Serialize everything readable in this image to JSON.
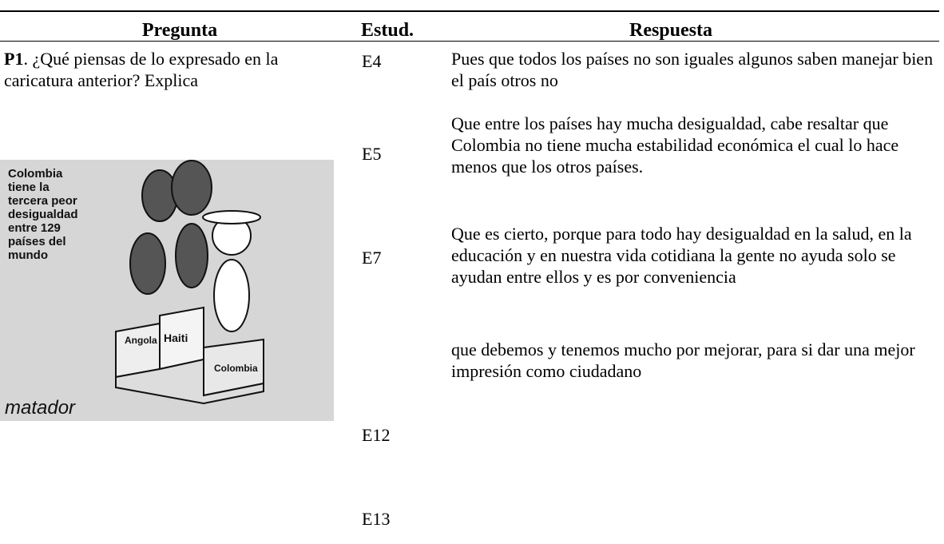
{
  "header": {
    "columns": [
      "Pregunta",
      "Estud.",
      "Respuesta"
    ]
  },
  "question": {
    "label": "P1",
    "text": ". ¿Qué piensas de lo expresado en la  caricatura anterior? Explica"
  },
  "cartoon": {
    "caption": [
      "Colombia",
      "tiene la",
      "tercera peor",
      "desigualdad",
      "entre 129",
      "países del",
      "mundo"
    ],
    "podium": [
      "Angola",
      "Haiti",
      "Colombia"
    ],
    "signature": "matador"
  },
  "rows": [
    {
      "student": "E4",
      "response": "Pues que todos los países no son iguales algunos saben manejar bien el país otros no"
    },
    {
      "student": "E5",
      "response": "Que entre los países hay  mucha desigualdad, cabe resaltar que Colombia no tiene mucha estabilidad económica el cual lo hace menos que los otros países."
    },
    {
      "student": "E7",
      "response": "Que es cierto, porque para todo hay desigualdad en la salud, en la educación y en nuestra vida cotidiana la gente no ayuda solo se ayudan entre ellos y es por conveniencia"
    },
    {
      "student": "E12",
      "response": "que debemos y tenemos mucho por mejorar, para si dar una mejor impresión como ciudadano"
    },
    {
      "student": "E13"
    }
  ]
}
